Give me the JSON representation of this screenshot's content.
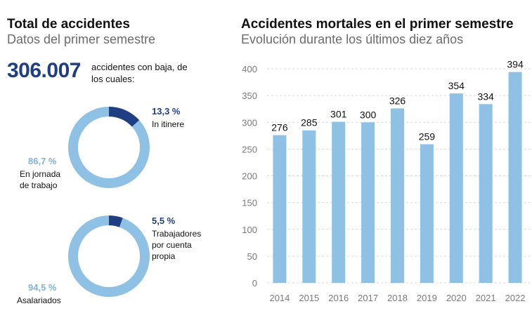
{
  "left": {
    "title": "Total de accidentes",
    "subtitle": "Datos del primer semestre",
    "total": "306.007",
    "total_desc": "accidentes con baja, de los cuales:",
    "donut1": {
      "small_pct": "13,3 %",
      "small_label": "In itinere",
      "large_pct": "86,7 %",
      "large_label": "En jornada de trabajo",
      "small_share": 13.3
    },
    "donut2": {
      "small_pct": "5,5 %",
      "small_label": "Trabajadores por cuenta propia",
      "large_pct": "94,5 %",
      "large_label": "Asalariados",
      "small_share": 5.5
    }
  },
  "right": {
    "title": "Accidentes mortales en el primer semestre",
    "subtitle": "Evolución durante los últimos diez años"
  },
  "colors": {
    "dark_blue": "#1f3f82",
    "light_blue": "#8fc1e5",
    "grid": "#d9d9d9",
    "axis_text": "#7a7a7a"
  },
  "chart_data": {
    "type": "bar",
    "title": "Accidentes mortales en el primer semestre",
    "subtitle": "Evolución durante los últimos diez años",
    "categories": [
      "2014",
      "2015",
      "2016",
      "2017",
      "2018",
      "2019",
      "2020",
      "2021",
      "2022"
    ],
    "values": [
      276,
      285,
      301,
      300,
      326,
      259,
      354,
      334,
      394
    ],
    "ylim": [
      0,
      400
    ],
    "yticks": [
      0,
      50,
      100,
      150,
      200,
      250,
      300,
      350,
      400
    ],
    "grid": true,
    "xlabel": "",
    "ylabel": ""
  }
}
